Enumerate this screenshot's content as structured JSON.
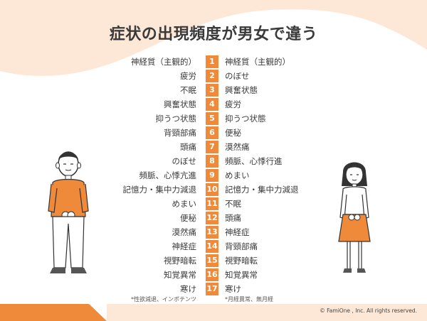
{
  "title": "症状の出現頻度が男女で違う",
  "rows": [
    {
      "rank": "1",
      "male": "神経質（主観的）",
      "female": "神経質（主観的）"
    },
    {
      "rank": "2",
      "male": "疲労",
      "female": "のぼせ"
    },
    {
      "rank": "3",
      "male": "不眠",
      "female": "興奮状態"
    },
    {
      "rank": "4",
      "male": "興奮状態",
      "female": "疲労"
    },
    {
      "rank": "5",
      "male": "抑うつ状態",
      "female": "抑うつ状態"
    },
    {
      "rank": "6",
      "male": "背頸部痛",
      "female": "便秘"
    },
    {
      "rank": "7",
      "male": "頭痛",
      "female": "漠然痛"
    },
    {
      "rank": "8",
      "male": "のぼせ",
      "female": "頻脈、心悸行進"
    },
    {
      "rank": "9",
      "male": "頻脈、心悸亢進",
      "female": "めまい"
    },
    {
      "rank": "10",
      "male": "記憶力・集中力減退",
      "female": "記憶力・集中力減退"
    },
    {
      "rank": "11",
      "male": "めまい",
      "female": "不眠"
    },
    {
      "rank": "12",
      "male": "便秘",
      "female": "頭痛"
    },
    {
      "rank": "13",
      "male": "漠然痛",
      "female": "神経症"
    },
    {
      "rank": "14",
      "male": "神経症",
      "female": "背頸部痛"
    },
    {
      "rank": "15",
      "male": "視野暗転",
      "female": "視野暗転"
    },
    {
      "rank": "16",
      "male": "知覚異常",
      "female": "知覚異常"
    },
    {
      "rank": "17",
      "male": "寒け",
      "female": "寒け"
    }
  ],
  "notes": {
    "male": "*性欲減退、インポテンツ",
    "female": "*月経異常、無月経"
  },
  "copyright": "© FamiOne , Inc. All rights reserved.",
  "colors": {
    "accent": "#ef8a3b",
    "peach_bg": "#fde7d6"
  },
  "icons": {
    "male": "man-illustration",
    "female": "woman-illustration"
  }
}
